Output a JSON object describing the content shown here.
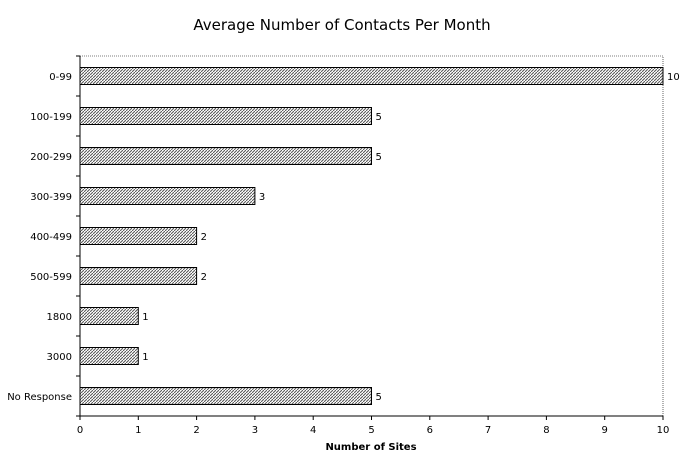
{
  "chart_data": {
    "type": "bar",
    "orientation": "horizontal",
    "title": "Average Number of Contacts Per Month",
    "xlabel": "Number of Sites",
    "ylabel": "",
    "categories": [
      "0-99",
      "100-199",
      "200-299",
      "300-399",
      "400-499",
      "500-599",
      "1800",
      "3000",
      "No Response"
    ],
    "values": [
      10,
      5,
      5,
      3,
      2,
      2,
      1,
      1,
      5
    ],
    "xlim": [
      0,
      10
    ],
    "xticks": [
      "0",
      "1",
      "2",
      "3",
      "4",
      "5",
      "6",
      "7",
      "8",
      "9",
      "10"
    ],
    "data_labels": [
      "10",
      "5",
      "5",
      "3",
      "2",
      "2",
      "1",
      "1",
      "5"
    ],
    "grid": false,
    "legend": "none",
    "bar_fill": "#9a9a9a",
    "bar_stroke": "#000000"
  }
}
